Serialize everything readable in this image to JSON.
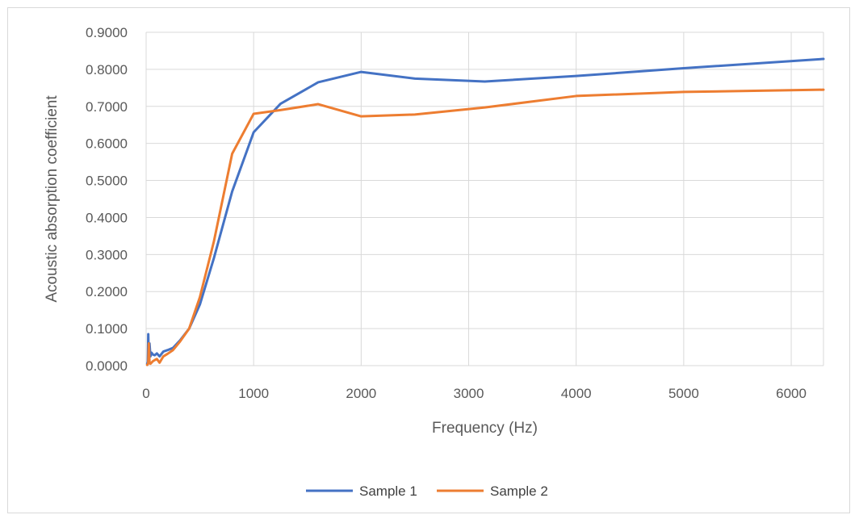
{
  "chart_data": {
    "type": "line",
    "title": "",
    "xlabel": "Frequency (Hz)",
    "ylabel": "Acoustic absorption coefficient",
    "xlim": [
      0,
      6300
    ],
    "ylim": [
      0,
      0.9
    ],
    "x_ticks": [
      {
        "value": 0,
        "label": "0"
      },
      {
        "value": 1000,
        "label": "1000"
      },
      {
        "value": 2000,
        "label": "2000"
      },
      {
        "value": 3000,
        "label": "3000"
      },
      {
        "value": 4000,
        "label": "4000"
      },
      {
        "value": 5000,
        "label": "5000"
      },
      {
        "value": 6000,
        "label": "6000"
      }
    ],
    "y_ticks": [
      {
        "value": 0.0,
        "label": "0.0000"
      },
      {
        "value": 0.1,
        "label": "0.1000"
      },
      {
        "value": 0.2,
        "label": "0.2000"
      },
      {
        "value": 0.3,
        "label": "0.3000"
      },
      {
        "value": 0.4,
        "label": "0.4000"
      },
      {
        "value": 0.5,
        "label": "0.5000"
      },
      {
        "value": 0.6,
        "label": "0.6000"
      },
      {
        "value": 0.7,
        "label": "0.7000"
      },
      {
        "value": 0.8,
        "label": "0.8000"
      },
      {
        "value": 0.9,
        "label": "0.9000"
      }
    ],
    "grid": "horizontal and vertical major gridlines",
    "legend_position": "bottom",
    "series": [
      {
        "name": "Sample 1",
        "color": "#4472C4",
        "x": [
          10,
          16,
          20,
          25,
          31.5,
          40,
          50,
          63,
          80,
          100,
          125,
          160,
          200,
          250,
          315,
          400,
          500,
          630,
          800,
          1000,
          1250,
          1600,
          2000,
          2500,
          3150,
          4000,
          5000,
          6300
        ],
        "y": [
          0.005,
          0.01,
          0.085,
          0.02,
          0.06,
          0.025,
          0.035,
          0.03,
          0.028,
          0.033,
          0.025,
          0.038,
          0.042,
          0.048,
          0.068,
          0.1,
          0.165,
          0.29,
          0.47,
          0.63,
          0.707,
          0.765,
          0.793,
          0.775,
          0.767,
          0.782,
          0.803,
          0.828
        ]
      },
      {
        "name": "Sample 2",
        "color": "#ED7D31",
        "x": [
          10,
          16,
          20,
          25,
          31.5,
          40,
          50,
          63,
          80,
          100,
          125,
          160,
          200,
          250,
          315,
          400,
          500,
          630,
          800,
          1000,
          1250,
          1600,
          2000,
          2500,
          3150,
          4000,
          5000,
          6300
        ],
        "y": [
          0.002,
          0.004,
          0.008,
          0.06,
          0.01,
          0.005,
          0.008,
          0.012,
          0.015,
          0.018,
          0.008,
          0.025,
          0.032,
          0.042,
          0.065,
          0.1,
          0.185,
          0.335,
          0.572,
          0.68,
          0.69,
          0.706,
          0.673,
          0.678,
          0.697,
          0.728,
          0.739,
          0.745
        ]
      }
    ]
  }
}
